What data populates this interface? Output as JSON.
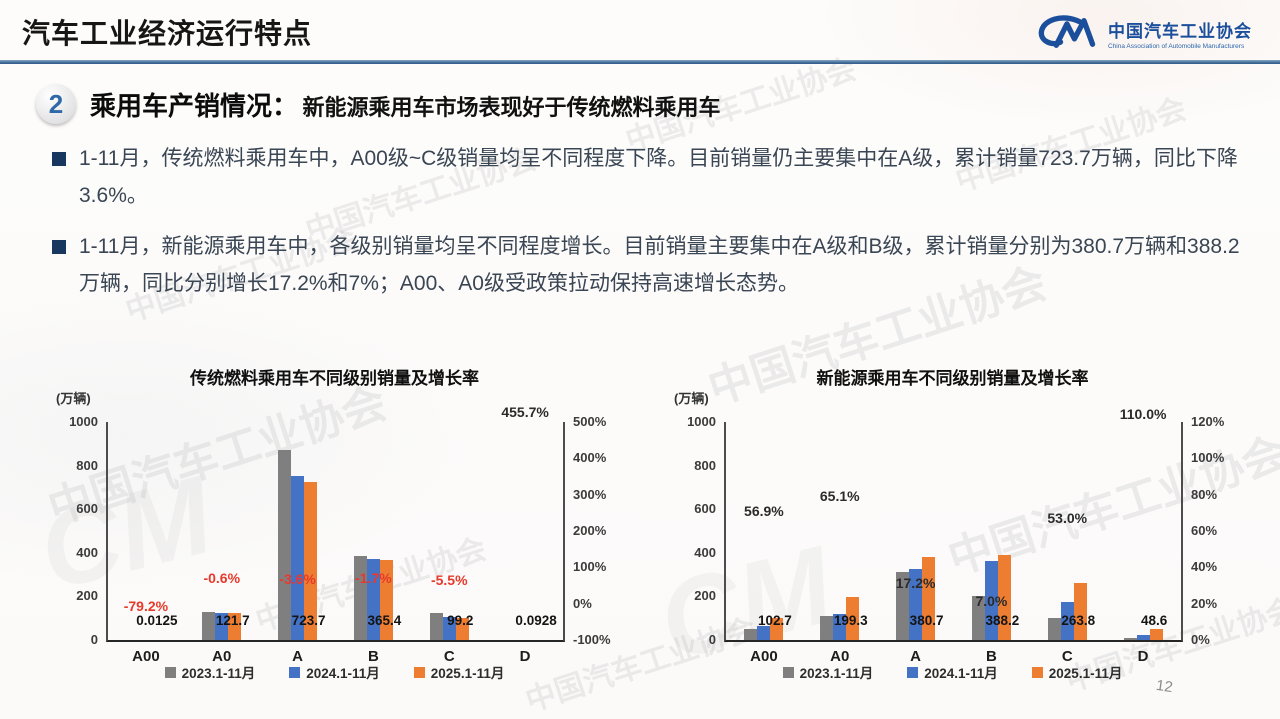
{
  "header": {
    "title": "汽车工业经济运行特点",
    "logo": {
      "cn": "中国汽车工业协会",
      "en": "China Association of Automobile Manufacturers"
    }
  },
  "section": {
    "number": "2",
    "heading": "乘用车产销情况：",
    "subheading": "新能源乘用车市场表现好于传统燃料乘用车"
  },
  "bullets": [
    "1-11月，传统燃料乘用车中，A00级~C级销量均呈不同程度下降。目前销量仍主要集中在A级，累计销量723.7万辆，同比下降3.6%。",
    "1-11月，新能源乘用车中，各级别销量均呈不同程度增长。目前销量主要集中在A级和B级，累计销量分别为380.7万辆和388.2万辆，同比分别增长17.2%和7%；A00、A0级受政策拉动保持高速增长态势。"
  ],
  "watermark_text": "中国汽车工业协会",
  "watermark_mark": "CM",
  "page_number": "12",
  "colors": {
    "series": [
      "#7f7f7f",
      "#4472c4",
      "#ed7d31"
    ],
    "growth_negative": "#e8392b",
    "growth_neutral": "#2b2b2b",
    "accent_navy": "#17375e",
    "logo_blue": "#1b4f9c"
  },
  "legend": [
    "2023.1-11月",
    "2024.1-11月",
    "2025.1-11月"
  ],
  "chart_data": [
    {
      "type": "bar",
      "title": "传统燃料乘用车不同级别销量及增长率",
      "unit": "(万辆)",
      "categories": [
        "A00",
        "A0",
        "A",
        "B",
        "C",
        "D"
      ],
      "left_axis": {
        "label": "万辆",
        "min": 0,
        "max": 1000,
        "ticks": [
          "1000",
          "800",
          "600",
          "400",
          "200",
          "0"
        ]
      },
      "right_axis": {
        "min": -100,
        "max": 500,
        "ticks": [
          "500%",
          "400%",
          "300%",
          "200%",
          "100%",
          "0%",
          "-100%"
        ]
      },
      "series": [
        {
          "name": "2023.1-11月",
          "values": [
            0.1,
            130,
            870,
            385,
            125,
            0.02
          ]
        },
        {
          "name": "2024.1-11月",
          "values": [
            0.06,
            122.4,
            750.7,
            371.7,
            105,
            0.017
          ]
        },
        {
          "name": "2025.1-11月",
          "values": [
            0.0125,
            121.7,
            723.7,
            365.4,
            99.2,
            0.0928
          ]
        }
      ],
      "value_labels": [
        "0.0125",
        "121.7",
        "723.7",
        "365.4",
        "99.2",
        "0.0928"
      ],
      "growth_labels": [
        {
          "text": "-79.2%",
          "value": -79.2,
          "tone": "negative"
        },
        {
          "text": "-0.6%",
          "value": -0.6,
          "tone": "negative"
        },
        {
          "text": "-3.6%",
          "value": -3.6,
          "tone": "negative"
        },
        {
          "text": "-1.7%",
          "value": -1.7,
          "tone": "negative"
        },
        {
          "text": "-5.5%",
          "value": -5.5,
          "tone": "negative"
        },
        {
          "text": "455.7%",
          "value": 455.7,
          "tone": "neutral"
        }
      ]
    },
    {
      "type": "bar",
      "title": "新能源乘用车不同级别销量及增长率",
      "unit": "(万辆)",
      "categories": [
        "A00",
        "A0",
        "A",
        "B",
        "C",
        "D"
      ],
      "left_axis": {
        "label": "万辆",
        "min": 0,
        "max": 1000,
        "ticks": [
          "1000",
          "800",
          "600",
          "400",
          "200",
          "0"
        ]
      },
      "right_axis": {
        "min": 0,
        "max": 120,
        "ticks": [
          "120%",
          "100%",
          "80%",
          "60%",
          "40%",
          "20%",
          "0%"
        ]
      },
      "series": [
        {
          "name": "2023.1-11月",
          "values": [
            50,
            110,
            310,
            200,
            100,
            8
          ]
        },
        {
          "name": "2024.1-11月",
          "values": [
            65.5,
            120.7,
            324.8,
            362.8,
            172.4,
            23.1
          ]
        },
        {
          "name": "2025.1-11月",
          "values": [
            102.7,
            199.3,
            380.7,
            388.2,
            263.8,
            48.6
          ]
        }
      ],
      "value_labels": [
        "102.7",
        "199.3",
        "380.7",
        "388.2",
        "263.8",
        "48.6"
      ],
      "growth_labels": [
        {
          "text": "56.9%",
          "value": 56.9,
          "tone": "neutral"
        },
        {
          "text": "65.1%",
          "value": 65.1,
          "tone": "neutral"
        },
        {
          "text": "17.2%",
          "value": 17.2,
          "tone": "neutral"
        },
        {
          "text": "7.0%",
          "value": 7.0,
          "tone": "neutral"
        },
        {
          "text": "53.0%",
          "value": 53.0,
          "tone": "neutral"
        },
        {
          "text": "110.0%",
          "value": 110.0,
          "tone": "neutral"
        }
      ]
    }
  ]
}
